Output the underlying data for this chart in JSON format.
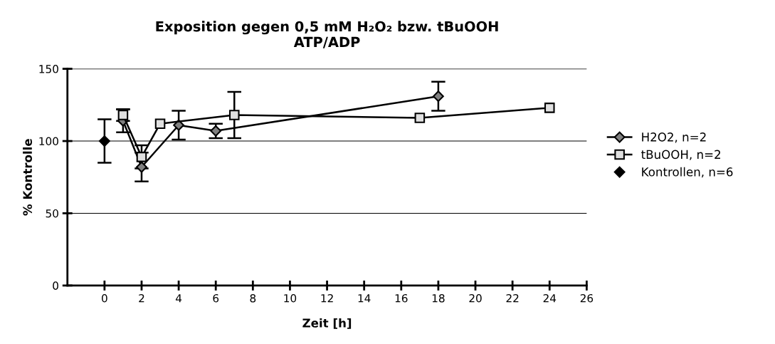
{
  "chart_data": {
    "type": "line",
    "title": "Exposition gegen 0,5 mM H₂O₂ bzw. tBuOOH\nATP/ADP",
    "xlabel": "Zeit [h]",
    "ylabel": "% Kontrolle",
    "xlim": [
      -2,
      26
    ],
    "xticks": [
      0,
      2,
      4,
      6,
      8,
      10,
      12,
      14,
      16,
      18,
      20,
      22,
      24,
      26
    ],
    "ylim": [
      0,
      150
    ],
    "yticks": [
      0,
      50,
      100,
      150
    ],
    "grid": "y",
    "legend": "right",
    "series": [
      {
        "name": "H2O2, n=2",
        "marker": "diamond",
        "color": "#808080",
        "x": [
          1,
          2,
          4,
          6,
          18
        ],
        "values": [
          114,
          82,
          111,
          107,
          131
        ],
        "errors": [
          8,
          10,
          10,
          5,
          10
        ]
      },
      {
        "name": "tBuOOH, n=2",
        "marker": "square",
        "color": "#e0e0e0",
        "x": [
          1,
          2,
          3,
          7,
          17,
          24
        ],
        "values": [
          118,
          89,
          112,
          118,
          116,
          123
        ],
        "errors": [
          4,
          8,
          null,
          16,
          null,
          null
        ]
      },
      {
        "name": "Kontrollen, n=6",
        "type": "scatter",
        "marker": "diamond",
        "color": "#000000",
        "x": [
          0
        ],
        "values": [
          100
        ],
        "errors": [
          15
        ]
      }
    ]
  }
}
